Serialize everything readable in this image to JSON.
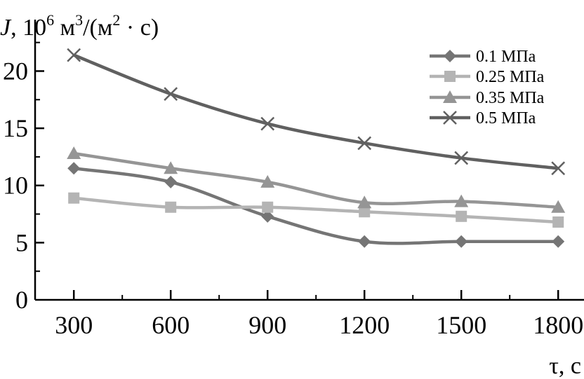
{
  "chart_data": {
    "type": "line",
    "ylabel": {
      "symbol": "J",
      "sep": ", 10",
      "exp1": "6",
      "unit_a": " м",
      "exp2": "3",
      "unit_b": "/(м",
      "exp3": "2",
      "unit_c": " · с)"
    },
    "xlabel": "τ, с",
    "x": [
      300,
      600,
      900,
      1200,
      1500,
      1800
    ],
    "xlim": [
      180,
      1880
    ],
    "ylim": [
      0,
      24.5
    ],
    "yticks": [
      0,
      5,
      10,
      15,
      20
    ],
    "grid": false,
    "legend_position": "top-right",
    "series": [
      {
        "name": "0.1 МПа",
        "marker": "diamond",
        "color": "#757575",
        "values": [
          11.5,
          10.3,
          7.3,
          5.1,
          5.1,
          5.1
        ]
      },
      {
        "name": "0.25 МПа",
        "marker": "square",
        "color": "#b4b4b4",
        "values": [
          8.9,
          8.1,
          8.1,
          7.7,
          7.3,
          6.8
        ]
      },
      {
        "name": "0.35 МПа",
        "marker": "triangle",
        "color": "#959595",
        "values": [
          12.8,
          11.5,
          10.3,
          8.5,
          8.6,
          8.1
        ]
      },
      {
        "name": "0.5 МПа",
        "marker": "cross",
        "color": "#606060",
        "values": [
          21.4,
          18.0,
          15.4,
          13.7,
          12.4,
          11.5
        ]
      }
    ]
  }
}
